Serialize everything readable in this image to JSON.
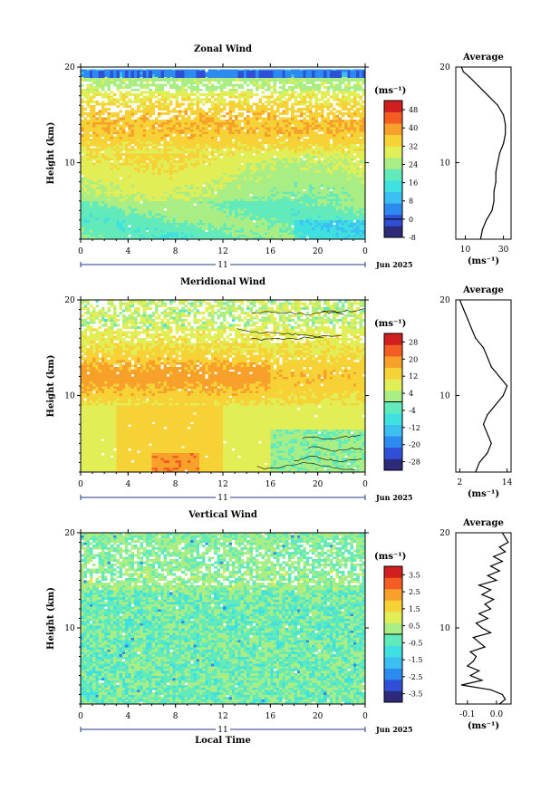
{
  "colors": {
    "zonal": [
      "#2e2a7a",
      "#2f50d6",
      "#2d8bf0",
      "#3cc0f2",
      "#3fe0e0",
      "#63eabb",
      "#a8ee85",
      "#e2ee55",
      "#f6d236",
      "#f7a02a",
      "#f35c22",
      "#d11e1e"
    ],
    "meridional": [
      "#2e2a7a",
      "#2f50d6",
      "#2d8bf0",
      "#3cc0f2",
      "#3fe0e0",
      "#63eabb",
      "#a8ee85",
      "#e2ee55",
      "#f6d236",
      "#f7a02a",
      "#f35c22",
      "#d11e1e"
    ],
    "vertical": [
      "#2e2a7a",
      "#2f50d6",
      "#2d8bf0",
      "#3cc0f2",
      "#3fe0e0",
      "#63eabb",
      "#a8ee85",
      "#e2ee55",
      "#f6d236",
      "#f7a02a",
      "#f35c22",
      "#d11e1e"
    ]
  },
  "chart_data": [
    {
      "type": "heatmap",
      "title": "Zonal Wind",
      "ylabel": "Height (km)",
      "ylim": [
        2,
        20
      ],
      "x_ticks": [
        "0",
        "4",
        "8",
        "12",
        "16",
        "20",
        "0"
      ],
      "y_ticks": [
        "10",
        "20"
      ],
      "date_label": "11",
      "date_suffix": "Jun 2025",
      "units": "(ms⁻¹)",
      "colorbar_ticks": [
        "48",
        "40",
        "32",
        "24",
        "16",
        "8",
        "0",
        "-8"
      ],
      "colorbar_range": [
        -8,
        52
      ],
      "profile": {
        "title": "Average",
        "x_ticks": [
          "10",
          "30"
        ],
        "xlim": [
          5,
          34
        ],
        "xlabel": "(ms⁻¹)",
        "y_ticks": [
          "10",
          "20"
        ],
        "heights": [
          2,
          3,
          4,
          5,
          6,
          7,
          8,
          9,
          10,
          11,
          12,
          13,
          14,
          15,
          16,
          17,
          18,
          19,
          19.5,
          20
        ],
        "values": [
          18,
          19,
          21,
          24,
          25,
          25,
          26,
          26,
          27,
          28,
          30,
          31,
          31,
          30,
          27,
          22,
          17,
          12,
          9,
          8
        ]
      }
    },
    {
      "type": "heatmap",
      "title": "Meridional Wind",
      "ylabel": "Height (km)",
      "ylim": [
        2,
        20
      ],
      "x_ticks": [
        "0",
        "4",
        "8",
        "12",
        "16",
        "20",
        "0"
      ],
      "y_ticks": [
        "10",
        "20"
      ],
      "date_label": "11",
      "date_suffix": "Jun 2025",
      "units": "(ms⁻¹)",
      "colorbar_ticks": [
        "28",
        "20",
        "12",
        "4",
        "-4",
        "-12",
        "-20",
        "-28"
      ],
      "colorbar_range": [
        -32,
        32
      ],
      "profile": {
        "title": "Average",
        "x_ticks": [
          "2",
          "14"
        ],
        "xlim": [
          1,
          15
        ],
        "xlabel": "(ms⁻¹)",
        "y_ticks": [
          "10",
          "20"
        ],
        "heights": [
          2,
          3,
          4,
          5,
          6,
          7,
          8,
          9,
          10,
          11,
          12,
          13,
          14,
          15,
          16,
          17,
          18,
          19,
          20
        ],
        "values": [
          6,
          7,
          9,
          10,
          9,
          8,
          9,
          11,
          13,
          14,
          12,
          10,
          9,
          8,
          6,
          5,
          4,
          3,
          2
        ]
      }
    },
    {
      "type": "heatmap",
      "title": "Vertical Wind",
      "ylabel": "Height (km)",
      "xlabel": "Local Time",
      "ylim": [
        2,
        20
      ],
      "x_ticks": [
        "0",
        "4",
        "8",
        "12",
        "16",
        "20",
        "0"
      ],
      "y_ticks": [
        "10",
        "20"
      ],
      "date_label": "11",
      "date_suffix": "Jun 2025",
      "units": "(ms⁻¹)",
      "colorbar_ticks": [
        "3.5",
        "2.5",
        "1.5",
        "0.5",
        "-0.5",
        "-1.5",
        "-2.5",
        "-3.5"
      ],
      "colorbar_range": [
        -4,
        4
      ],
      "profile": {
        "title": "Average",
        "x_ticks": [
          "-0.1",
          "0.0"
        ],
        "xlim": [
          -0.14,
          0.05
        ],
        "xlabel": "(ms⁻¹)",
        "y_ticks": [
          "10",
          "20"
        ],
        "heights": [
          2,
          2.5,
          3,
          3.5,
          4,
          4.5,
          5,
          5.5,
          6,
          6.5,
          7,
          7.5,
          8,
          8.5,
          9,
          9.5,
          10,
          10.5,
          11,
          11.5,
          12,
          12.5,
          13,
          13.5,
          14,
          14.5,
          15,
          15.5,
          16,
          16.5,
          17,
          17.5,
          18,
          18.5,
          19,
          19.5,
          20
        ],
        "values": [
          0.01,
          0.03,
          0.02,
          -0.02,
          -0.12,
          -0.05,
          -0.09,
          -0.06,
          -0.1,
          -0.08,
          -0.07,
          -0.09,
          -0.04,
          -0.06,
          -0.08,
          -0.02,
          -0.05,
          -0.07,
          -0.03,
          -0.06,
          -0.02,
          -0.04,
          -0.01,
          -0.05,
          -0.02,
          -0.06,
          0.0,
          -0.03,
          0.01,
          -0.02,
          0.02,
          -0.01,
          0.03,
          0.01,
          0.04,
          0.03,
          0.02
        ]
      }
    }
  ]
}
